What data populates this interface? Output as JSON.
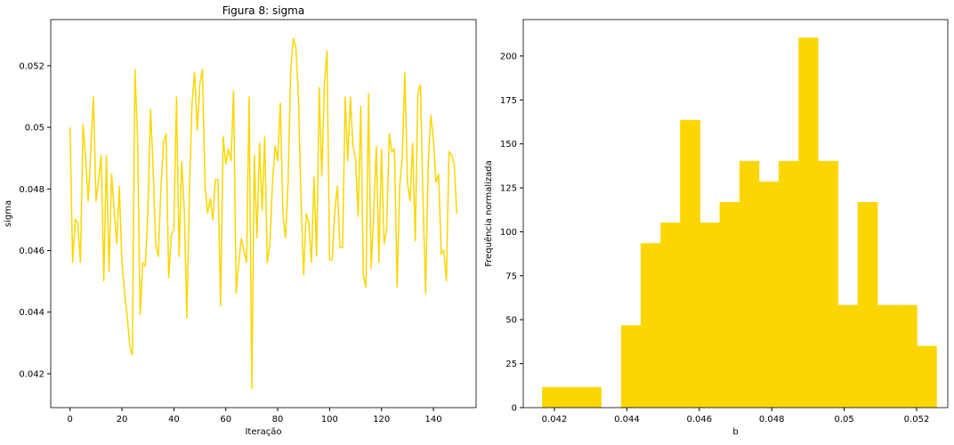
{
  "chart_data": [
    {
      "type": "line",
      "title": "Figura 8: sigma",
      "xlabel": "Iteração",
      "ylabel": "sigma",
      "color": "#fcd600",
      "x": [
        0,
        1,
        2,
        3,
        4,
        5,
        6,
        7,
        8,
        9,
        10,
        11,
        12,
        13,
        14,
        15,
        16,
        17,
        18,
        19,
        20,
        21,
        22,
        23,
        24,
        25,
        26,
        27,
        28,
        29,
        30,
        31,
        32,
        33,
        34,
        35,
        36,
        37,
        38,
        39,
        40,
        41,
        42,
        43,
        44,
        45,
        46,
        47,
        48,
        49,
        50,
        51,
        52,
        53,
        54,
        55,
        56,
        57,
        58,
        59,
        60,
        61,
        62,
        63,
        64,
        65,
        66,
        67,
        68,
        69,
        70,
        71,
        72,
        73,
        74,
        75,
        76,
        77,
        78,
        79,
        80,
        81,
        82,
        83,
        84,
        85,
        86,
        87,
        88,
        89,
        90,
        91,
        92,
        93,
        94,
        95,
        96,
        97,
        98,
        99,
        100,
        101,
        102,
        103,
        104,
        105,
        106,
        107,
        108,
        109,
        110,
        111,
        112,
        113,
        114,
        115,
        116,
        117,
        118,
        119,
        120,
        121,
        122,
        123,
        124,
        125,
        126,
        127,
        128,
        129,
        130,
        131,
        132,
        133,
        134,
        135,
        136,
        137,
        138,
        139,
        140,
        141,
        142,
        143,
        144,
        145,
        146,
        147,
        148,
        149
      ],
      "values": [
        0.05,
        0.0456,
        0.047,
        0.0469,
        0.0456,
        0.0501,
        0.049,
        0.0476,
        0.0493,
        0.051,
        0.0476,
        0.0483,
        0.0491,
        0.045,
        0.0491,
        0.0453,
        0.0485,
        0.0473,
        0.0462,
        0.0481,
        0.0456,
        0.0446,
        0.0439,
        0.0429,
        0.0426,
        0.0519,
        0.0497,
        0.0439,
        0.0456,
        0.0455,
        0.0473,
        0.0506,
        0.0487,
        0.0462,
        0.0458,
        0.048,
        0.0495,
        0.0498,
        0.0451,
        0.0465,
        0.0467,
        0.051,
        0.0458,
        0.0489,
        0.0473,
        0.0438,
        0.048,
        0.0508,
        0.0518,
        0.0499,
        0.0514,
        0.0519,
        0.0481,
        0.0472,
        0.0477,
        0.047,
        0.0483,
        0.0483,
        0.0442,
        0.0497,
        0.0488,
        0.0493,
        0.0489,
        0.0512,
        0.0446,
        0.0456,
        0.0464,
        0.046,
        0.0456,
        0.051,
        0.0415,
        0.0491,
        0.0464,
        0.0495,
        0.0473,
        0.0497,
        0.0456,
        0.0462,
        0.0482,
        0.0494,
        0.0489,
        0.0508,
        0.0472,
        0.0464,
        0.0482,
        0.0518,
        0.0529,
        0.0526,
        0.051,
        0.0476,
        0.0452,
        0.0472,
        0.0469,
        0.0456,
        0.0484,
        0.0458,
        0.0513,
        0.0484,
        0.0514,
        0.0525,
        0.0457,
        0.0457,
        0.0473,
        0.0481,
        0.0461,
        0.0461,
        0.051,
        0.0489,
        0.051,
        0.0494,
        0.049,
        0.0471,
        0.0507,
        0.0452,
        0.0448,
        0.0511,
        0.0454,
        0.0472,
        0.0494,
        0.0456,
        0.0493,
        0.0462,
        0.0467,
        0.0498,
        0.0492,
        0.0493,
        0.0448,
        0.0481,
        0.049,
        0.0518,
        0.0482,
        0.0476,
        0.0495,
        0.0463,
        0.0511,
        0.0514,
        0.0476,
        0.0446,
        0.0488,
        0.0504,
        0.0496,
        0.0482,
        0.0485,
        0.0459,
        0.046,
        0.045,
        0.0492,
        0.0491,
        0.0488,
        0.0472
      ],
      "xlim": [
        -7.45,
        156.45
      ],
      "xticks": [
        0,
        20,
        40,
        60,
        80,
        100,
        120,
        140
      ],
      "ylim": [
        0.0409,
        0.0535
      ],
      "yticks": [
        0.042,
        0.044,
        0.046,
        0.048,
        0.05,
        0.052
      ]
    },
    {
      "type": "histogram",
      "xlabel": "b",
      "ylabel": "Frequência normalizada",
      "color": "#fcd600",
      "bins": [
        0.04166,
        0.0422,
        0.04275,
        0.04329,
        0.04384,
        0.04438,
        0.04493,
        0.04547,
        0.04602,
        0.04656,
        0.04711,
        0.04765,
        0.04819,
        0.04874,
        0.04928,
        0.04983,
        0.05037,
        0.05092,
        0.05146,
        0.05201,
        0.05255
      ],
      "values": [
        11.7,
        11.7,
        11.7,
        0,
        46.8,
        93.5,
        105.2,
        163.6,
        105.2,
        116.9,
        140.3,
        128.6,
        140.3,
        210.4,
        140.3,
        58.4,
        116.9,
        58.4,
        58.4,
        35.1
      ],
      "xlim": [
        0.04114,
        0.05286
      ],
      "xticks": [
        0.042,
        0.044,
        0.046,
        0.048,
        0.05,
        0.052
      ],
      "ylim": [
        0,
        220.7
      ],
      "yticks": [
        0,
        25,
        50,
        75,
        100,
        125,
        150,
        175,
        200
      ]
    }
  ]
}
